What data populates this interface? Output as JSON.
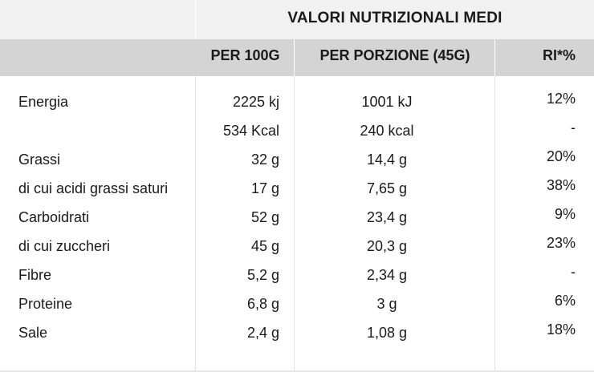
{
  "header": {
    "title": "VALORI NUTRIZIONALI MEDI",
    "col_per100": "PER 100G",
    "col_porzione": "PER PORZIONE (45G)",
    "col_ri": "RI*%"
  },
  "rows": [
    {
      "label": "Energia",
      "per100": "2225 kj",
      "porzione": "1001 kJ",
      "ri": "12%"
    },
    {
      "label": "",
      "per100": "534 Kcal",
      "porzione": "240 kcal",
      "ri": "-"
    },
    {
      "label": "Grassi",
      "per100": "32 g",
      "porzione": "14,4 g",
      "ri": "20%"
    },
    {
      "label": "di cui acidi grassi saturi",
      "per100": "17 g",
      "porzione": "7,65 g",
      "ri": "38%"
    },
    {
      "label": "Carboidrati",
      "per100": "52 g",
      "porzione": "23,4 g",
      "ri": "9%"
    },
    {
      "label": "di cui zuccheri",
      "per100": "45 g",
      "porzione": "20,3 g",
      "ri": "23%"
    },
    {
      "label": "Fibre",
      "per100": "5,2 g",
      "porzione": "2,34 g",
      "ri": "-"
    },
    {
      "label": "Proteine",
      "per100": "6,8 g",
      "porzione": "3 g",
      "ri": "6%"
    },
    {
      "label": "Sale",
      "per100": "2,4 g",
      "porzione": "1,08 g",
      "ri": "18%"
    }
  ]
}
